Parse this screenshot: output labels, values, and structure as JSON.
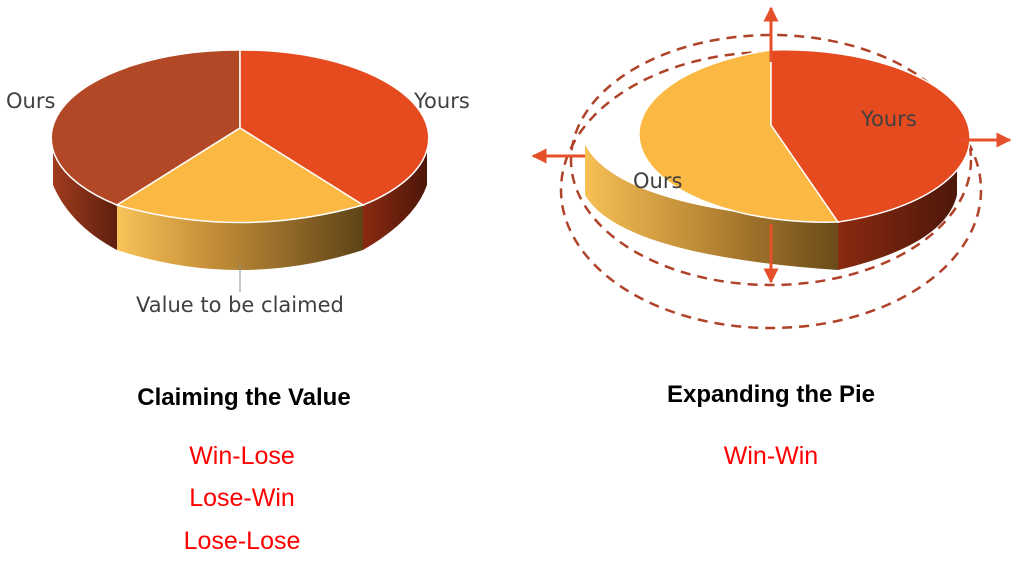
{
  "left_pie": {
    "slices": [
      {
        "label": "Ours",
        "role": "ours",
        "color": "#b24825"
      },
      {
        "label": "Yours",
        "role": "yours",
        "color": "#e64a1f"
      },
      {
        "label": "Value to be claimed",
        "role": "claimed",
        "color": "#fbb943"
      }
    ],
    "title": "Claiming the Value",
    "outcomes": [
      "Win-Lose",
      "Lose-Win",
      "Lose-Lose"
    ]
  },
  "right_pie": {
    "slices": [
      {
        "label": "Ours",
        "role": "ours",
        "color": "#fbb943"
      },
      {
        "label": "Yours",
        "role": "yours",
        "color": "#e64a1f"
      }
    ],
    "title": "Expanding the Pie",
    "outcomes": [
      "Win-Win"
    ],
    "expansion_arrow_color": "#e5502a",
    "dashed_ring_color": "#b0422a"
  },
  "outcome_color": "#ff0000"
}
